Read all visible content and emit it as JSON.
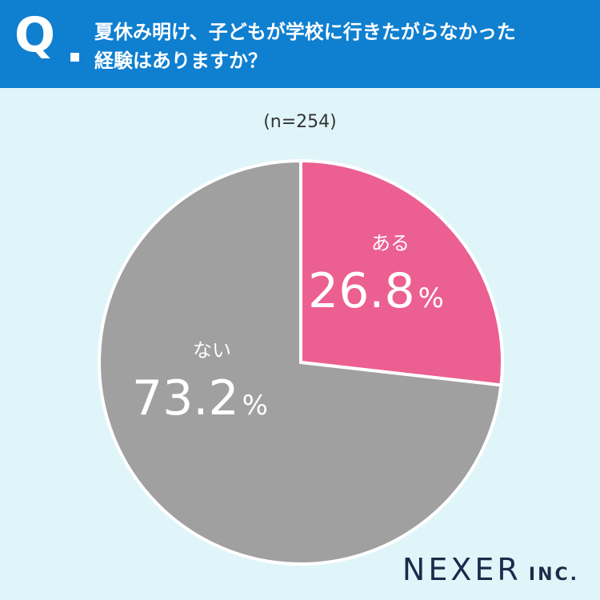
{
  "header": {
    "q_mark": "Q",
    "question": "夏休み明け、子どもが学校に行きたがらなかった\n経験はありますか？"
  },
  "chart_data": {
    "type": "pie",
    "sample_label": "(n=254)",
    "slices": [
      {
        "name": "ある",
        "value": 26.8,
        "color": "#ec5f91"
      },
      {
        "name": "ない",
        "value": 73.2,
        "color": "#a0a0a0"
      }
    ],
    "unit": "%"
  },
  "logo": {
    "main": "NEXER",
    "sub": "INC."
  }
}
